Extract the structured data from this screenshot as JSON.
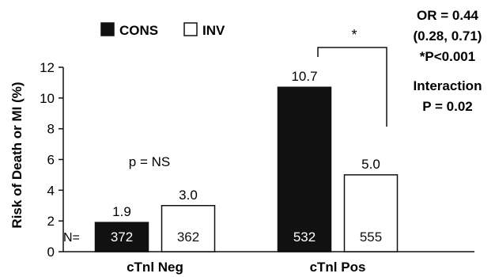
{
  "chart_data": {
    "type": "bar",
    "categories": [
      "cTnl Neg",
      "cTnl Pos"
    ],
    "series": [
      {
        "name": "CONS",
        "values": [
          1.9,
          10.7
        ],
        "n": [
          "372",
          "532"
        ],
        "labels": [
          "1.9",
          "10.7"
        ],
        "fill": "#111111"
      },
      {
        "name": "INV",
        "values": [
          3.0,
          5.0
        ],
        "n": [
          "362",
          "555"
        ],
        "labels": [
          "3.0",
          "5.0"
        ],
        "fill": "#ffffff"
      }
    ],
    "ylabel": "Risk of Death or MI (%)",
    "ylim": [
      0,
      12
    ],
    "yticks": [
      "0",
      "2",
      "4",
      "6",
      "8",
      "10",
      "12"
    ],
    "n_prefix": "N=",
    "annotations": {
      "neg_p": "p = NS",
      "pos_star": "*",
      "or_lines": [
        "OR = 0.44",
        "(0.28, 0.71)",
        "*P<0.001"
      ],
      "interaction_lines": [
        "Interaction",
        "P = 0.02"
      ]
    },
    "legend_position": "top-left"
  }
}
